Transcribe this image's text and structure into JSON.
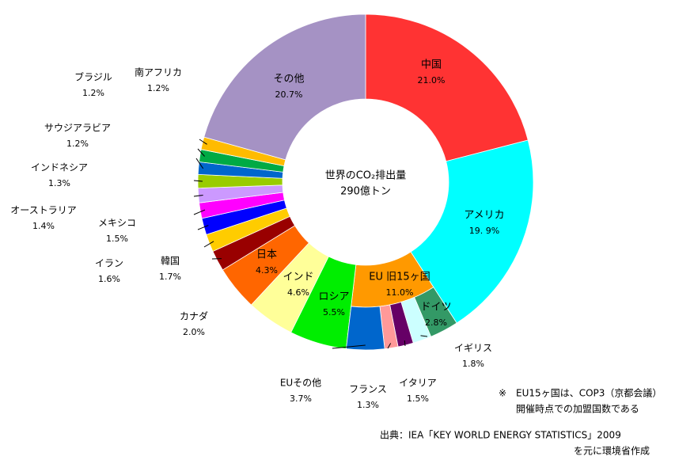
{
  "chart_data": {
    "type": "donut",
    "center_title": "世界のCO₂排出量",
    "center_value": "290億トン",
    "categories": [
      "中国",
      "アメリカ",
      "EU 旧15ヶ国",
      "ロシア",
      "インド",
      "日本",
      "カナダ",
      "韓国",
      "イラン",
      "メキシコ",
      "オーストラリア",
      "インドネシア",
      "サウジアラビア",
      "ブラジル",
      "南アフリカ",
      "その他"
    ],
    "values": [
      21.0,
      19.9,
      11.0,
      5.5,
      4.6,
      4.3,
      2.0,
      1.7,
      1.6,
      1.5,
      1.4,
      1.3,
      1.2,
      1.2,
      1.2,
      20.7
    ],
    "value_labels": [
      "21.0%",
      "19. 9%",
      "11.0%",
      "5.5%",
      "4.6%",
      "4.3%",
      "2.0%",
      "1.7%",
      "1.6%",
      "1.5%",
      "1.4%",
      "1.3%",
      "1.2%",
      "1.2%",
      "1.2%",
      "20.7%"
    ],
    "colors": [
      "#ff3333",
      "#00ffff",
      "#ff9900",
      "#00ee00",
      "#ffff99",
      "#ff6600",
      "#990000",
      "#ffcc00",
      "#0000ff",
      "#ff00ff",
      "#cc99ff",
      "#99cc00",
      "#0066cc",
      "#00aa44",
      "#ffbb00",
      "#a592c4"
    ],
    "eu_breakdown": {
      "categories": [
        "ドイツ",
        "イギリス",
        "イタリア",
        "フランス",
        "EUその他"
      ],
      "values": [
        2.8,
        1.8,
        1.5,
        1.3,
        3.7
      ],
      "value_labels": [
        "2.8%",
        "1.8%",
        "1.5%",
        "1.3%",
        "3.7%"
      ],
      "colors": [
        "#339966",
        "#ccffff",
        "#660066",
        "#ff9999",
        "#0066cc"
      ]
    },
    "notes": [
      "※　EU15ヶ国は、COP3（京都会議）",
      "開催時点での加盟国数である"
    ],
    "source": [
      "出典：IEA「KEY WORLD ENERGY STATISTICS」2009",
      "を元に環境省作成"
    ]
  }
}
